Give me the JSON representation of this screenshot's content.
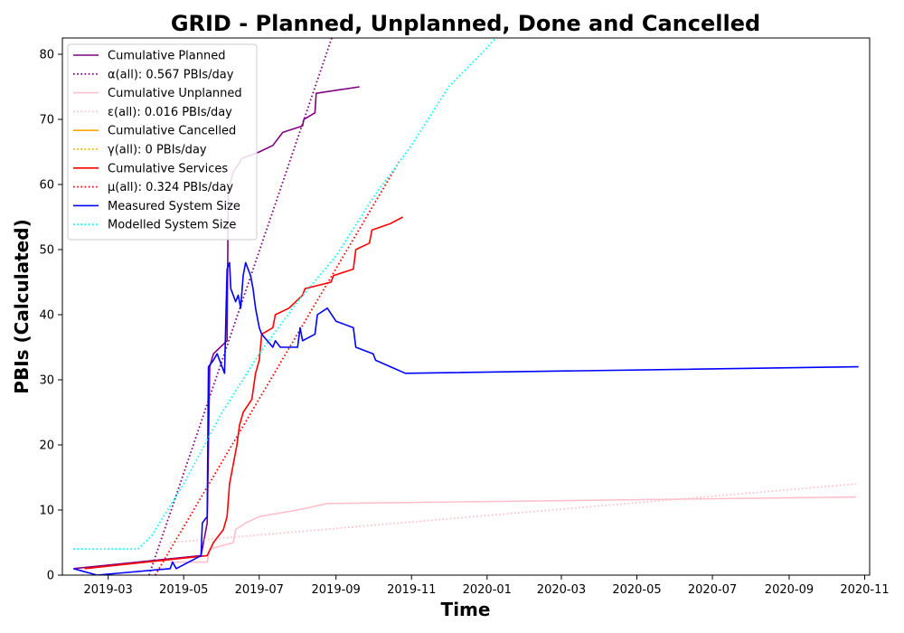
{
  "chart_data": {
    "type": "line",
    "title": "GRID - Planned, Unplanned, Done  and Cancelled",
    "xlabel": "Time",
    "ylabel": "PBIs (Calculated)",
    "xlim": [
      "2019-01-23",
      "2020-11-05"
    ],
    "ylim": [
      0,
      82.5
    ],
    "x_ticks": [
      "2019-03",
      "2019-05",
      "2019-07",
      "2019-09",
      "2019-11",
      "2020-01",
      "2020-03",
      "2020-05",
      "2020-07",
      "2020-09",
      "2020-11"
    ],
    "y_ticks": [
      0,
      10,
      20,
      30,
      40,
      50,
      60,
      70,
      80
    ],
    "grid": false,
    "legend_position": "upper-left",
    "series": [
      {
        "name": "Cumulative Planned",
        "color": "#800080",
        "style": "solid",
        "points": [
          [
            "2019-02-01",
            1
          ],
          [
            "2019-05-15",
            3
          ],
          [
            "2019-05-20",
            8
          ],
          [
            "2019-05-22",
            32
          ],
          [
            "2019-05-25",
            34
          ],
          [
            "2019-06-05",
            36
          ],
          [
            "2019-06-06",
            59
          ],
          [
            "2019-06-10",
            62
          ],
          [
            "2019-06-14",
            63
          ],
          [
            "2019-06-17",
            64
          ],
          [
            "2019-07-01",
            65
          ],
          [
            "2019-07-12",
            66
          ],
          [
            "2019-07-20",
            68
          ],
          [
            "2019-08-05",
            69
          ],
          [
            "2019-08-06",
            70
          ],
          [
            "2019-08-15",
            71
          ],
          [
            "2019-08-16",
            74
          ],
          [
            "2019-09-20",
            75
          ]
        ]
      },
      {
        "name": "α(all): 0.567 PBIs/day",
        "color": "#800080",
        "style": "dotted",
        "points": [
          [
            "2019-04-03",
            0
          ],
          [
            "2019-09-02",
            85
          ]
        ]
      },
      {
        "name": "Cumulative Unplanned",
        "color": "#ffc0cb",
        "style": "solid",
        "points": [
          [
            "2019-04-20",
            2
          ],
          [
            "2019-05-20",
            2
          ],
          [
            "2019-05-22",
            4
          ],
          [
            "2019-06-10",
            5
          ],
          [
            "2019-06-12",
            7
          ],
          [
            "2019-06-20",
            8
          ],
          [
            "2019-07-01",
            9
          ],
          [
            "2019-08-01",
            10
          ],
          [
            "2019-08-25",
            11
          ],
          [
            "2020-10-25",
            12
          ]
        ]
      },
      {
        "name": "ε(all): 0.016 PBIs/day",
        "color": "#ffc0cb",
        "style": "dotted",
        "points": [
          [
            "2019-04-20",
            5
          ],
          [
            "2020-10-25",
            14
          ]
        ]
      },
      {
        "name": "Cumulative Cancelled",
        "color": "#ffa500",
        "style": "solid",
        "points": []
      },
      {
        "name": "γ(all): 0 PBIs/day",
        "color": "#ffa500",
        "style": "dotted",
        "points": []
      },
      {
        "name": "Cumulative Services",
        "color": "#ff0000",
        "style": "solid",
        "points": [
          [
            "2019-02-10",
            1
          ],
          [
            "2019-05-20",
            3
          ],
          [
            "2019-05-25",
            5
          ],
          [
            "2019-06-02",
            7
          ],
          [
            "2019-06-05",
            9
          ],
          [
            "2019-06-07",
            14
          ],
          [
            "2019-06-10",
            17
          ],
          [
            "2019-06-13",
            20
          ],
          [
            "2019-06-15",
            23
          ],
          [
            "2019-06-18",
            25
          ],
          [
            "2019-06-25",
            27
          ],
          [
            "2019-06-28",
            31
          ],
          [
            "2019-07-01",
            33
          ],
          [
            "2019-07-03",
            37
          ],
          [
            "2019-07-12",
            38
          ],
          [
            "2019-07-14",
            40
          ],
          [
            "2019-07-25",
            41
          ],
          [
            "2019-08-05",
            43
          ],
          [
            "2019-08-07",
            44
          ],
          [
            "2019-08-28",
            45
          ],
          [
            "2019-08-30",
            46
          ],
          [
            "2019-09-15",
            47
          ],
          [
            "2019-09-17",
            50
          ],
          [
            "2019-09-28",
            51
          ],
          [
            "2019-09-30",
            53
          ],
          [
            "2019-10-15",
            54
          ],
          [
            "2019-10-25",
            55
          ]
        ]
      },
      {
        "name": "μ(all): 0.324 PBIs/day",
        "color": "#ff0000",
        "style": "dotted",
        "points": [
          [
            "2019-04-08",
            0
          ],
          [
            "2019-10-22",
            63.5
          ]
        ]
      },
      {
        "name": "Measured System Size",
        "color": "#0000ff",
        "style": "solid",
        "points": [
          [
            "2019-02-01",
            1
          ],
          [
            "2019-02-20",
            0
          ],
          [
            "2019-04-20",
            1
          ],
          [
            "2019-04-22",
            2
          ],
          [
            "2019-04-25",
            1
          ],
          [
            "2019-05-15",
            3
          ],
          [
            "2019-05-16",
            8
          ],
          [
            "2019-05-20",
            9
          ],
          [
            "2019-05-21",
            32
          ],
          [
            "2019-05-25",
            33
          ],
          [
            "2019-05-28",
            34
          ],
          [
            "2019-06-03",
            31
          ],
          [
            "2019-06-05",
            47
          ],
          [
            "2019-06-07",
            48
          ],
          [
            "2019-06-08",
            44
          ],
          [
            "2019-06-12",
            42
          ],
          [
            "2019-06-14",
            43
          ],
          [
            "2019-06-16",
            41
          ],
          [
            "2019-06-18",
            46
          ],
          [
            "2019-06-20",
            48
          ],
          [
            "2019-06-24",
            46
          ],
          [
            "2019-06-26",
            44
          ],
          [
            "2019-06-28",
            41
          ],
          [
            "2019-07-01",
            38
          ],
          [
            "2019-07-03",
            37
          ],
          [
            "2019-07-12",
            35
          ],
          [
            "2019-07-14",
            36
          ],
          [
            "2019-07-18",
            35
          ],
          [
            "2019-08-01",
            35
          ],
          [
            "2019-08-03",
            38
          ],
          [
            "2019-08-05",
            36
          ],
          [
            "2019-08-15",
            37
          ],
          [
            "2019-08-17",
            40
          ],
          [
            "2019-08-25",
            41
          ],
          [
            "2019-09-01",
            39
          ],
          [
            "2019-09-15",
            38
          ],
          [
            "2019-09-17",
            35
          ],
          [
            "2019-10-01",
            34
          ],
          [
            "2019-10-03",
            33
          ],
          [
            "2019-10-15",
            32
          ],
          [
            "2019-10-27",
            31
          ],
          [
            "2020-10-27",
            32
          ]
        ]
      },
      {
        "name": "Modelled System Size",
        "color": "#00ffff",
        "style": "dotted",
        "points": [
          [
            "2019-02-01",
            4
          ],
          [
            "2019-03-25",
            4
          ],
          [
            "2019-04-05",
            6
          ],
          [
            "2019-05-01",
            14
          ],
          [
            "2019-06-01",
            25
          ],
          [
            "2019-07-01",
            34
          ],
          [
            "2019-08-01",
            42
          ],
          [
            "2019-09-01",
            49
          ],
          [
            "2019-10-01",
            58
          ],
          [
            "2019-11-01",
            66
          ],
          [
            "2019-12-01",
            75
          ],
          [
            "2020-01-01",
            81
          ],
          [
            "2020-01-15",
            84
          ]
        ]
      }
    ]
  }
}
